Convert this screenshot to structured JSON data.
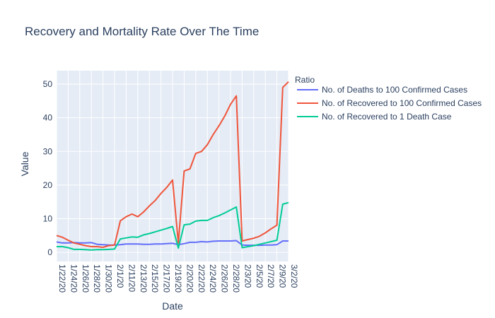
{
  "chart_data": {
    "type": "line",
    "title": "Recovery and Mortality Rate Over The Time",
    "xlabel": "Date",
    "ylabel": "Value",
    "ylim": [
      -2.7,
      54
    ],
    "yticks": [
      0,
      10,
      20,
      30,
      40,
      50
    ],
    "legend_title": "Ratio",
    "legend_position": "right",
    "grid": true,
    "x": [
      "1/22/20",
      "1/23/20",
      "1/24/20",
      "1/25/20",
      "1/26/20",
      "1/27/20",
      "1/28/20",
      "1/29/20",
      "1/30/20",
      "1/31/20",
      "2/1/20",
      "2/10/20",
      "2/11/20",
      "2/12/20",
      "2/13/20",
      "2/14/20",
      "2/15/20",
      "2/16/20",
      "2/17/20",
      "2/18/20",
      "2/19/20",
      "2/2/20",
      "2/20/20",
      "2/21/20",
      "2/22/20",
      "2/23/20",
      "2/24/20",
      "2/25/20",
      "2/26/20",
      "2/27/20",
      "2/28/20",
      "2/29/20",
      "2/3/20",
      "2/4/20",
      "2/5/20",
      "2/6/20",
      "2/7/20",
      "2/8/20",
      "2/9/20",
      "3/1/20",
      "3/2/20"
    ],
    "xticks": [
      "1/22/20",
      "1/24/20",
      "1/26/20",
      "1/28/20",
      "1/30/20",
      "2/1/20",
      "2/11/20",
      "2/13/20",
      "2/15/20",
      "2/17/20",
      "2/19/20",
      "2/20/20",
      "2/22/20",
      "2/24/20",
      "2/26/20",
      "2/28/20",
      "2/3/20",
      "2/5/20",
      "2/7/20",
      "2/9/20",
      "3/2/20"
    ],
    "series": [
      {
        "name": "No. of Deaths to 100 Confirmed Cases",
        "color": "#636efa",
        "values": [
          3.1,
          2.8,
          2.8,
          2.9,
          2.8,
          2.8,
          2.9,
          2.4,
          2.3,
          2.2,
          2.2,
          2.3,
          2.5,
          2.5,
          2.5,
          2.4,
          2.4,
          2.5,
          2.5,
          2.6,
          2.7,
          2.3,
          2.6,
          3.0,
          3.0,
          3.2,
          3.1,
          3.3,
          3.4,
          3.4,
          3.4,
          3.5,
          2.2,
          2.1,
          2.1,
          2.1,
          2.2,
          2.2,
          2.3,
          3.4,
          3.4
        ]
      },
      {
        "name": "No. of Recovered to 100 Confirmed Cases",
        "color": "#ef553b",
        "values": [
          5.0,
          4.5,
          3.6,
          2.8,
          2.4,
          2.0,
          1.7,
          1.7,
          1.5,
          2.0,
          2.2,
          9.4,
          10.6,
          11.4,
          10.6,
          12.0,
          13.8,
          15.4,
          17.5,
          19.3,
          21.5,
          2.8,
          24.2,
          24.8,
          29.4,
          30.0,
          32.0,
          35.0,
          37.6,
          40.5,
          44.0,
          46.5,
          3.4,
          3.8,
          4.2,
          4.8,
          5.8,
          7.0,
          8.1,
          49.0,
          50.7
        ]
      },
      {
        "name": "No. of Recovered to 1 Death Case",
        "color": "#00cc96",
        "values": [
          1.7,
          1.7,
          1.4,
          0.9,
          0.9,
          0.8,
          0.7,
          0.8,
          0.8,
          0.9,
          1.0,
          4.0,
          4.3,
          4.6,
          4.5,
          5.2,
          5.6,
          6.1,
          6.6,
          7.1,
          7.7,
          1.3,
          8.2,
          8.4,
          9.3,
          9.5,
          9.5,
          10.3,
          10.9,
          11.7,
          12.6,
          13.5,
          1.4,
          1.7,
          2.0,
          2.4,
          2.8,
          3.2,
          3.6,
          14.3,
          14.8
        ]
      }
    ]
  }
}
